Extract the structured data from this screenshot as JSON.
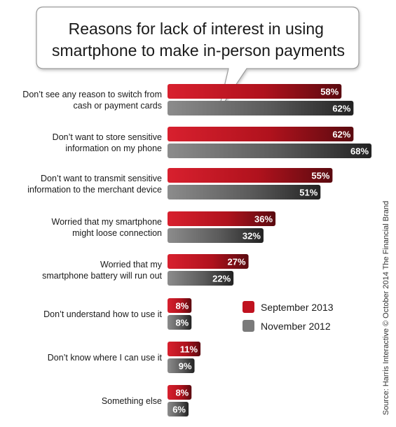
{
  "chart_data": {
    "type": "bar",
    "orientation": "horizontal",
    "title": "Reasons for lack of interest in using smartphone to make in-person payments",
    "title_lines": [
      "Reasons for lack of interest in using",
      "smartphone to make in-person payments"
    ],
    "categories": [
      [
        "Don’t see any reason to switch from",
        "cash or payment cards"
      ],
      [
        "Don’t want to store sensitive",
        "information on my phone"
      ],
      [
        "Don’t want to transmit sensitive",
        "information to the merchant device"
      ],
      [
        "Worried that my smartphone",
        "might loose connection"
      ],
      [
        "Worried that my",
        "smartphone battery will run out"
      ],
      [
        "Don’t understand how to use it"
      ],
      [
        "Don’t know where I can use it"
      ],
      [
        "Something else"
      ]
    ],
    "series": [
      {
        "name": "September 2013",
        "color": "#c0121f",
        "values": [
          58,
          62,
          55,
          36,
          27,
          8,
          11,
          8
        ]
      },
      {
        "name": "November 2012",
        "color": "#7a7a7a",
        "values": [
          62,
          68,
          51,
          32,
          22,
          8,
          9,
          6
        ]
      }
    ],
    "value_suffix": "%",
    "legend_position": "middle-right",
    "source": "Source: Harris Interactive © October 2014 The Financial Brand"
  }
}
